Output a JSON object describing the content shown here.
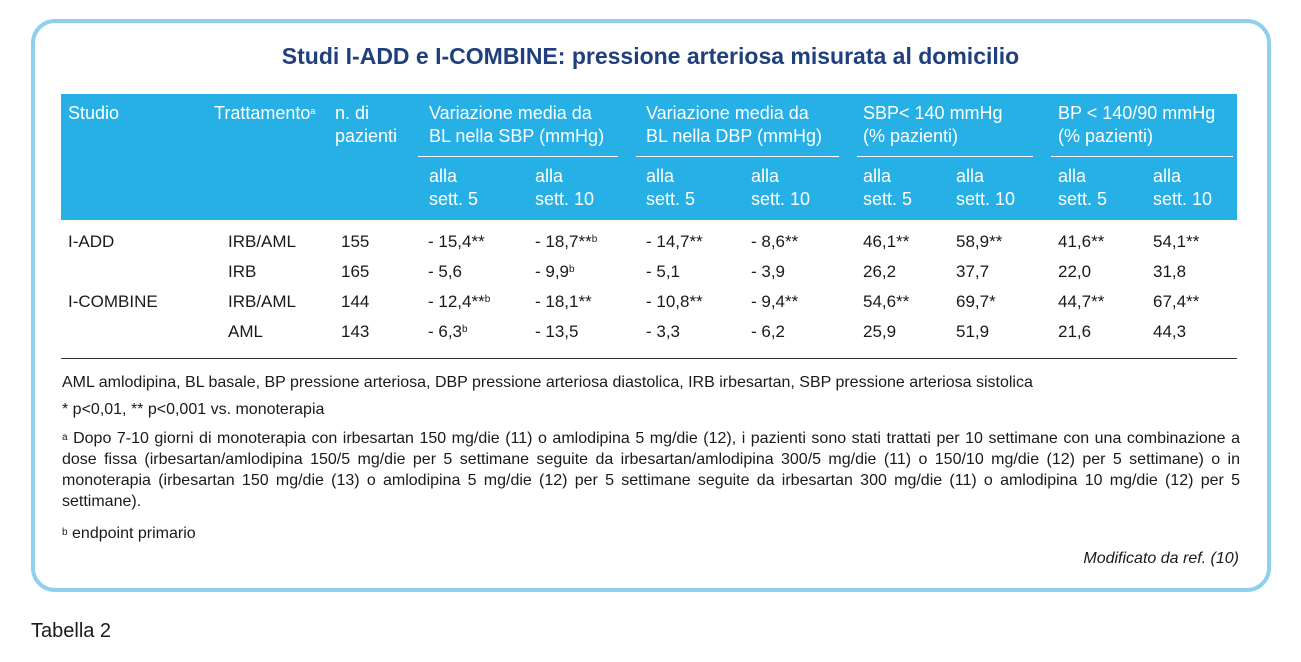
{
  "title": "Studi I-ADD e I-COMBINE: pressione arteriosa misurata al domicilio",
  "header": {
    "studio": "Studio",
    "trattamento": "Trattamento",
    "trattamento_sup": "a",
    "n_line1": "n. di",
    "n_line2": "pazienti",
    "groups": [
      {
        "line1": "Variazione media da",
        "line2": "BL nella SBP (mmHg)"
      },
      {
        "line1": "Variazione media da",
        "line2": "BL nella DBP (mmHg)"
      },
      {
        "line1": "SBP< 140 mmHg",
        "line2": "(% pazienti)"
      },
      {
        "line1": "BP < 140/90 mmHg",
        "line2": "(% pazienti)"
      }
    ],
    "sub": {
      "alla": "alla",
      "w5": "sett. 5",
      "w10": "sett. 10"
    }
  },
  "rows": [
    {
      "study": "I-ADD",
      "treat": "IRB/AML",
      "n": "155",
      "cells": [
        [
          "- 15,4**",
          ""
        ],
        [
          "- 18,7**",
          "b"
        ],
        [
          "- 14,7**",
          ""
        ],
        [
          "- 8,6**",
          ""
        ],
        [
          "46,1**",
          ""
        ],
        [
          "58,9**",
          ""
        ],
        [
          "41,6**",
          ""
        ],
        [
          "54,1**",
          ""
        ]
      ]
    },
    {
      "study": "",
      "treat": "IRB",
      "n": "165",
      "cells": [
        [
          "- 5,6",
          ""
        ],
        [
          "- 9,9",
          "b"
        ],
        [
          "- 5,1",
          ""
        ],
        [
          "- 3,9",
          ""
        ],
        [
          "26,2",
          ""
        ],
        [
          "37,7",
          ""
        ],
        [
          "22,0",
          ""
        ],
        [
          "31,8",
          ""
        ]
      ]
    },
    {
      "study": "I-COMBINE",
      "treat": "IRB/AML",
      "n": "144",
      "cells": [
        [
          "- 12,4**",
          "b"
        ],
        [
          "- 18,1**",
          ""
        ],
        [
          "- 10,8**",
          ""
        ],
        [
          "- 9,4**",
          ""
        ],
        [
          "54,6**",
          ""
        ],
        [
          "69,7*",
          ""
        ],
        [
          "44,7**",
          ""
        ],
        [
          "67,4**",
          ""
        ]
      ]
    },
    {
      "study": "",
      "treat": "AML",
      "n": "143",
      "cells": [
        [
          "- 6,3",
          "b"
        ],
        [
          "- 13,5",
          ""
        ],
        [
          "- 3,3",
          ""
        ],
        [
          "- 6,2",
          ""
        ],
        [
          "25,9",
          ""
        ],
        [
          "51,9",
          ""
        ],
        [
          "21,6",
          ""
        ],
        [
          "44,3",
          ""
        ]
      ]
    }
  ],
  "notes": {
    "abbrev": "AML amlodipina, BL basale, BP pressione arteriosa, DBP pressione arteriosa diastolica, IRB irbesartan, SBP pressione arteriosa sistolica",
    "signif": "* p<0,01, ** p<0,001 vs. monoterapia",
    "a_mark": "a",
    "a_text": "Dopo 7-10 giorni di monoterapia con irbesartan 150 mg/die (11) o amlodipina 5 mg/die (12), i pazienti sono stati trattati per 10 settimane con una combinazione a dose fissa (irbesartan/amlodipina 150/5 mg/die per 5 settimane seguite da irbesartan/amlodipina 300/5 mg/die (11) o 150/10 mg/die (12) per 5 settimane) o in monoterapia (irbesartan 150 mg/die (13) o amlodipina 5 mg/die (12) per 5 settimane seguite da irbesartan 300 mg/die (11) o amlodipina 10 mg/die (12) per 5 settimane).",
    "b_mark": "b",
    "b_text": "endpoint primario"
  },
  "credit": "Modificato da ref. (10)",
  "caption": "Tabella 2"
}
